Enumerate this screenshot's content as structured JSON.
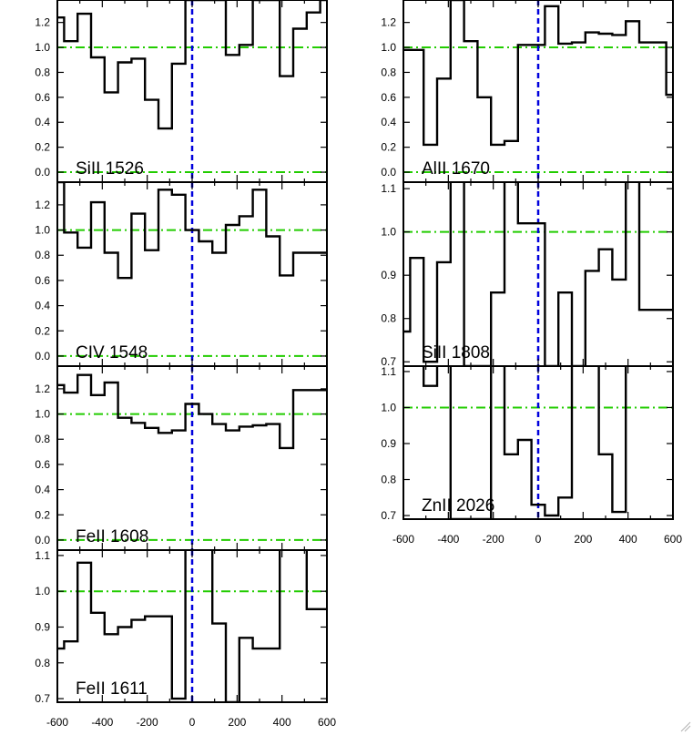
{
  "chart_data": [
    {
      "type": "line",
      "label": "SiII 1526",
      "xlim": [
        -600,
        600
      ],
      "ylim": [
        -0.08,
        1.38
      ],
      "yticks": [
        "0.0",
        "0.2",
        "0.4",
        "0.6",
        "0.8",
        "1.0",
        "1.2"
      ],
      "yticks_values": [
        0.0,
        0.2,
        0.4,
        0.6,
        0.8,
        1.0,
        1.2
      ],
      "xtick_labels": [],
      "x": [
        -600,
        -540,
        -480,
        -420,
        -360,
        -300,
        -240,
        -180,
        -120,
        -60,
        0,
        60,
        120,
        180,
        240,
        300,
        360,
        420,
        480,
        540,
        600
      ],
      "y": [
        1.24,
        1.05,
        1.27,
        0.92,
        0.64,
        0.88,
        0.91,
        0.58,
        0.35,
        0.87,
        1.38,
        1.38,
        1.38,
        0.94,
        1.02,
        1.38,
        1.38,
        0.77,
        1.15,
        1.28,
        1.38
      ]
    },
    {
      "type": "line",
      "label": "CIV 1548",
      "xlim": [
        -600,
        600
      ],
      "ylim": [
        -0.08,
        1.38
      ],
      "yticks": [
        "0.0",
        "0.2",
        "0.4",
        "0.6",
        "0.8",
        "1.0",
        "1.2"
      ],
      "yticks_values": [
        0.0,
        0.2,
        0.4,
        0.6,
        0.8,
        1.0,
        1.2
      ],
      "xtick_labels": [],
      "x": [
        -600,
        -540,
        -480,
        -420,
        -360,
        -300,
        -240,
        -180,
        -120,
        -60,
        0,
        60,
        120,
        180,
        240,
        300,
        360,
        420,
        480,
        540,
        600
      ],
      "y": [
        1.38,
        0.98,
        0.86,
        1.22,
        0.82,
        0.62,
        1.13,
        0.84,
        1.32,
        1.28,
        1.0,
        0.91,
        0.82,
        1.04,
        1.11,
        1.32,
        0.95,
        0.64,
        0.82,
        0.82,
        0.82
      ]
    },
    {
      "type": "line",
      "label": "FeII 1608",
      "xlim": [
        -600,
        600
      ],
      "ylim": [
        -0.08,
        1.38
      ],
      "yticks": [
        "0.0",
        "0.2",
        "0.4",
        "0.6",
        "0.8",
        "1.0",
        "1.2"
      ],
      "yticks_values": [
        0.0,
        0.2,
        0.4,
        0.6,
        0.8,
        1.0,
        1.2
      ],
      "xtick_labels": [],
      "x": [
        -600,
        -540,
        -480,
        -420,
        -360,
        -300,
        -240,
        -180,
        -120,
        -60,
        0,
        60,
        120,
        180,
        240,
        300,
        360,
        420,
        480,
        540,
        600
      ],
      "y": [
        1.23,
        1.17,
        1.31,
        1.15,
        1.25,
        0.97,
        0.93,
        0.89,
        0.85,
        0.87,
        1.08,
        1.0,
        0.92,
        0.87,
        0.9,
        0.91,
        0.92,
        0.73,
        1.19,
        1.19,
        1.19
      ]
    },
    {
      "type": "line",
      "label": "FeII 1611",
      "xlim": [
        -600,
        600
      ],
      "ylim": [
        0.69,
        1.115
      ],
      "yticks": [
        "0.7",
        "0.8",
        "0.9",
        "1.0",
        "1.1"
      ],
      "yticks_values": [
        0.7,
        0.8,
        0.9,
        1.0,
        1.1
      ],
      "xtick_labels": [
        "-600",
        "-400",
        "-200",
        "0",
        "200",
        "400",
        "600"
      ],
      "xtick_values": [
        -600,
        -400,
        -200,
        0,
        200,
        400,
        600
      ],
      "x": [
        -600,
        -540,
        -480,
        -420,
        -360,
        -300,
        -240,
        -180,
        -120,
        -60,
        0,
        60,
        120,
        180,
        240,
        300,
        360,
        420,
        480,
        540,
        600
      ],
      "y": [
        0.84,
        0.86,
        1.08,
        0.94,
        0.88,
        0.9,
        0.92,
        0.93,
        0.93,
        0.7,
        1.12,
        1.12,
        0.91,
        0.69,
        0.87,
        0.84,
        0.84,
        1.12,
        1.12,
        0.95,
        0.95
      ]
    },
    {
      "type": "line",
      "label": "AlII 1670",
      "xlim": [
        -600,
        600
      ],
      "ylim": [
        -0.08,
        1.38
      ],
      "yticks": [
        "0.0",
        "0.2",
        "0.4",
        "0.6",
        "0.8",
        "1.0",
        "1.2"
      ],
      "yticks_values": [
        0.0,
        0.2,
        0.4,
        0.6,
        0.8,
        1.0,
        1.2
      ],
      "xtick_labels": [],
      "x": [
        -600,
        -540,
        -480,
        -420,
        -360,
        -300,
        -240,
        -180,
        -120,
        -60,
        0,
        60,
        120,
        180,
        240,
        300,
        360,
        420,
        480,
        540,
        600
      ],
      "y": [
        0.98,
        0.98,
        0.22,
        0.75,
        1.38,
        1.05,
        0.6,
        0.22,
        0.25,
        1.02,
        1.02,
        1.33,
        1.03,
        1.04,
        1.12,
        1.11,
        1.1,
        1.21,
        1.04,
        1.04,
        0.62
      ]
    },
    {
      "type": "line",
      "label": "SiII 1808",
      "xlim": [
        -600,
        600
      ],
      "ylim": [
        0.69,
        1.115
      ],
      "yticks": [
        "0.7",
        "0.8",
        "0.9",
        "1.0",
        "1.1"
      ],
      "yticks_values": [
        0.7,
        0.8,
        0.9,
        1.0,
        1.1
      ],
      "xtick_labels": [],
      "x": [
        -600,
        -540,
        -480,
        -420,
        -360,
        -300,
        -240,
        -180,
        -120,
        -60,
        0,
        60,
        120,
        180,
        240,
        300,
        360,
        420,
        480,
        540,
        600
      ],
      "y": [
        0.77,
        0.94,
        0.7,
        0.93,
        1.12,
        0.69,
        0.69,
        0.86,
        1.12,
        1.02,
        1.02,
        0.69,
        0.86,
        0.69,
        0.91,
        0.96,
        0.89,
        1.12,
        0.82,
        0.82,
        0.82
      ]
    },
    {
      "type": "line",
      "label": "ZnII 2026",
      "xlim": [
        -600,
        600
      ],
      "ylim": [
        0.69,
        1.115
      ],
      "yticks": [
        "0.7",
        "0.8",
        "0.9",
        "1.0",
        "1.1"
      ],
      "yticks_values": [
        0.7,
        0.8,
        0.9,
        1.0,
        1.1
      ],
      "xtick_labels": [
        "-600",
        "-400",
        "-200",
        "0",
        "200",
        "400",
        "600"
      ],
      "xtick_values": [
        -600,
        -400,
        -200,
        0,
        200,
        400,
        600
      ],
      "x": [
        -600,
        -540,
        -480,
        -420,
        -360,
        -300,
        -240,
        -180,
        -120,
        -60,
        0,
        60,
        120,
        180,
        240,
        300,
        360,
        420,
        480,
        540,
        600
      ],
      "y": [
        1.12,
        1.12,
        1.06,
        1.12,
        0.69,
        0.69,
        0.69,
        1.12,
        0.87,
        0.91,
        0.73,
        0.7,
        0.75,
        1.12,
        1.12,
        0.87,
        0.71,
        1.12,
        1.12,
        1.12,
        1.12
      ]
    }
  ]
}
